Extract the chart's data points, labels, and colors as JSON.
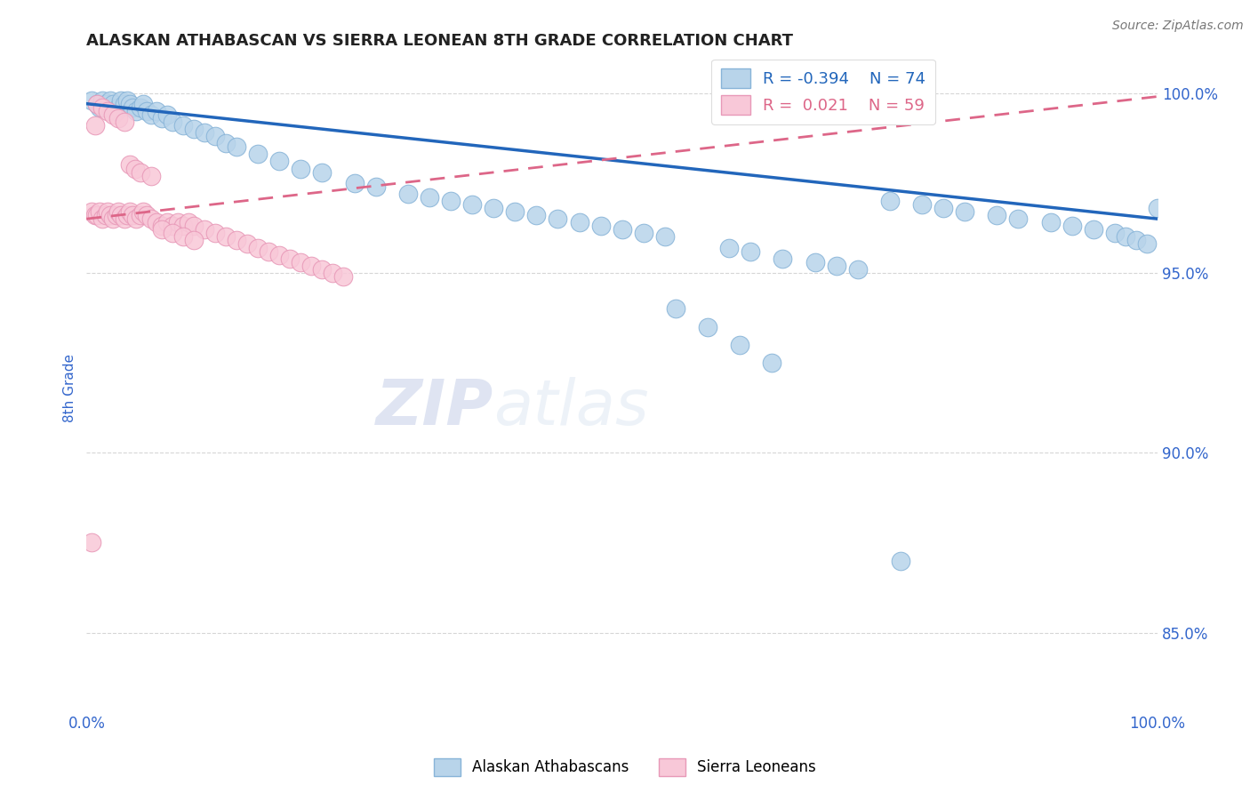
{
  "title": "ALASKAN ATHABASCAN VS SIERRA LEONEAN 8TH GRADE CORRELATION CHART",
  "source_text": "Source: ZipAtlas.com",
  "ylabel": "8th Grade",
  "xlim": [
    0.0,
    1.0
  ],
  "ylim": [
    0.828,
    1.008
  ],
  "yticks": [
    0.85,
    0.9,
    0.95,
    1.0
  ],
  "ytick_labels": [
    "85.0%",
    "90.0%",
    "95.0%",
    "100.0%"
  ],
  "xticks": [
    0.0,
    1.0
  ],
  "xtick_labels": [
    "0.0%",
    "100.0%"
  ],
  "legend_r_blue": "-0.394",
  "legend_n_blue": "74",
  "legend_r_pink": "0.021",
  "legend_n_pink": "59",
  "blue_color": "#b8d4ea",
  "blue_edge_color": "#88b4d8",
  "pink_color": "#f8c8d8",
  "pink_edge_color": "#e899b8",
  "blue_line_color": "#2266bb",
  "pink_line_color": "#dd6688",
  "title_color": "#222222",
  "axis_color": "#3366cc",
  "tick_label_color": "#3366cc",
  "watermark_color": "#cdd8ec",
  "blue_scatter_x": [
    0.005,
    0.01,
    0.012,
    0.015,
    0.018,
    0.02,
    0.022,
    0.025,
    0.028,
    0.03,
    0.032,
    0.035,
    0.038,
    0.04,
    0.043,
    0.046,
    0.05,
    0.053,
    0.056,
    0.06,
    0.065,
    0.07,
    0.075,
    0.08,
    0.09,
    0.1,
    0.11,
    0.12,
    0.13,
    0.14,
    0.16,
    0.18,
    0.2,
    0.22,
    0.25,
    0.27,
    0.3,
    0.32,
    0.34,
    0.36,
    0.38,
    0.4,
    0.42,
    0.44,
    0.46,
    0.48,
    0.5,
    0.52,
    0.54,
    0.6,
    0.62,
    0.65,
    0.68,
    0.7,
    0.72,
    0.75,
    0.78,
    0.8,
    0.82,
    0.85,
    0.87,
    0.9,
    0.92,
    0.94,
    0.96,
    0.97,
    0.98,
    0.99,
    1.0,
    0.55,
    0.58,
    0.61,
    0.64,
    0.76
  ],
  "blue_scatter_y": [
    0.998,
    0.997,
    0.996,
    0.998,
    0.997,
    0.996,
    0.998,
    0.997,
    0.995,
    0.996,
    0.998,
    0.997,
    0.998,
    0.997,
    0.996,
    0.995,
    0.996,
    0.997,
    0.995,
    0.994,
    0.995,
    0.993,
    0.994,
    0.992,
    0.991,
    0.99,
    0.989,
    0.988,
    0.986,
    0.985,
    0.983,
    0.981,
    0.979,
    0.978,
    0.975,
    0.974,
    0.972,
    0.971,
    0.97,
    0.969,
    0.968,
    0.967,
    0.966,
    0.965,
    0.964,
    0.963,
    0.962,
    0.961,
    0.96,
    0.957,
    0.956,
    0.954,
    0.953,
    0.952,
    0.951,
    0.97,
    0.969,
    0.968,
    0.967,
    0.966,
    0.965,
    0.964,
    0.963,
    0.962,
    0.961,
    0.96,
    0.959,
    0.958,
    0.968,
    0.94,
    0.935,
    0.93,
    0.925,
    0.87
  ],
  "pink_scatter_x": [
    0.005,
    0.008,
    0.01,
    0.012,
    0.015,
    0.018,
    0.02,
    0.022,
    0.025,
    0.028,
    0.03,
    0.032,
    0.035,
    0.038,
    0.04,
    0.043,
    0.046,
    0.05,
    0.053,
    0.056,
    0.06,
    0.065,
    0.07,
    0.075,
    0.08,
    0.085,
    0.09,
    0.095,
    0.1,
    0.11,
    0.12,
    0.13,
    0.14,
    0.15,
    0.16,
    0.17,
    0.18,
    0.19,
    0.2,
    0.21,
    0.22,
    0.23,
    0.24,
    0.01,
    0.015,
    0.02,
    0.025,
    0.03,
    0.035,
    0.008,
    0.04,
    0.045,
    0.05,
    0.06,
    0.07,
    0.08,
    0.09,
    0.1,
    0.005
  ],
  "pink_scatter_y": [
    0.967,
    0.966,
    0.966,
    0.967,
    0.965,
    0.966,
    0.967,
    0.966,
    0.965,
    0.966,
    0.967,
    0.966,
    0.965,
    0.966,
    0.967,
    0.966,
    0.965,
    0.966,
    0.967,
    0.966,
    0.965,
    0.964,
    0.963,
    0.964,
    0.963,
    0.964,
    0.963,
    0.964,
    0.963,
    0.962,
    0.961,
    0.96,
    0.959,
    0.958,
    0.957,
    0.956,
    0.955,
    0.954,
    0.953,
    0.952,
    0.951,
    0.95,
    0.949,
    0.997,
    0.996,
    0.995,
    0.994,
    0.993,
    0.992,
    0.991,
    0.98,
    0.979,
    0.978,
    0.977,
    0.962,
    0.961,
    0.96,
    0.959,
    0.875
  ]
}
